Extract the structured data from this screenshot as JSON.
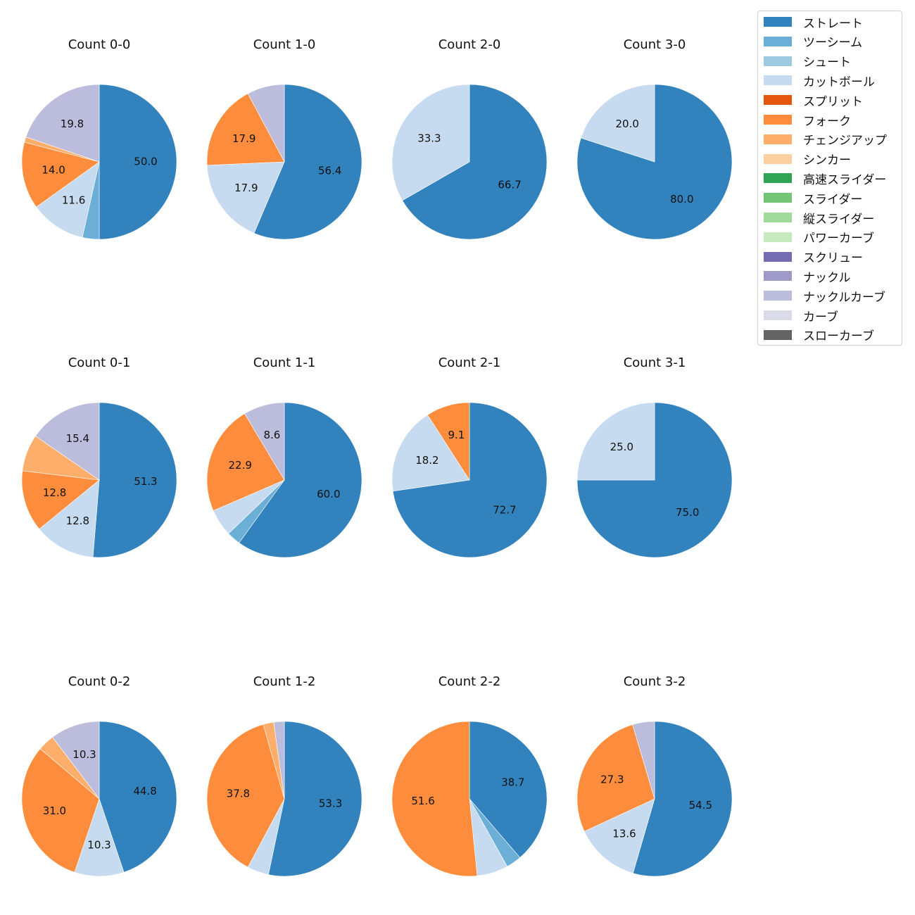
{
  "chart_data": {
    "type": "pie",
    "legend": {
      "placement": "top-right",
      "entries": [
        {
          "name": "ストレート",
          "color": "#3182bd"
        },
        {
          "name": "ツーシーム",
          "color": "#6baed6"
        },
        {
          "name": "シュート",
          "color": "#9ecae1"
        },
        {
          "name": "カットボール",
          "color": "#c6dbef"
        },
        {
          "name": "スプリット",
          "color": "#e6550d"
        },
        {
          "name": "フォーク",
          "color": "#fd8d3c"
        },
        {
          "name": "チェンジアップ",
          "color": "#fdae6b"
        },
        {
          "name": "シンカー",
          "color": "#fdd0a2"
        },
        {
          "name": "高速スライダー",
          "color": "#31a354"
        },
        {
          "name": "スライダー",
          "color": "#74c476"
        },
        {
          "name": "縦スライダー",
          "color": "#a1d99b"
        },
        {
          "name": "パワーカーブ",
          "color": "#c7e9c0"
        },
        {
          "name": "スクリュー",
          "color": "#756bb1"
        },
        {
          "name": "ナックル",
          "color": "#9e9ac8"
        },
        {
          "name": "ナックルカーブ",
          "color": "#bcbddc"
        },
        {
          "name": "カーブ",
          "color": "#dadaeb"
        },
        {
          "name": "スローカーブ",
          "color": "#636363"
        }
      ]
    },
    "charts": [
      {
        "title": "Count 0-0",
        "slices": [
          {
            "name": "ストレート",
            "value": 50.0,
            "label": "50.0"
          },
          {
            "name": "ツーシーム",
            "value": 3.5,
            "label": ""
          },
          {
            "name": "カットボール",
            "value": 11.6,
            "label": "11.6"
          },
          {
            "name": "フォーク",
            "value": 14.0,
            "label": "14.0"
          },
          {
            "name": "チェンジアップ",
            "value": 1.1,
            "label": ""
          },
          {
            "name": "ナックルカーブ",
            "value": 19.8,
            "label": "19.8"
          }
        ]
      },
      {
        "title": "Count 1-0",
        "slices": [
          {
            "name": "ストレート",
            "value": 56.4,
            "label": "56.4"
          },
          {
            "name": "カットボール",
            "value": 17.9,
            "label": "17.9"
          },
          {
            "name": "フォーク",
            "value": 17.9,
            "label": "17.9"
          },
          {
            "name": "ナックルカーブ",
            "value": 7.8,
            "label": ""
          }
        ]
      },
      {
        "title": "Count 2-0",
        "slices": [
          {
            "name": "ストレート",
            "value": 66.7,
            "label": "66.7"
          },
          {
            "name": "カットボール",
            "value": 33.3,
            "label": "33.3"
          }
        ]
      },
      {
        "title": "Count 3-0",
        "slices": [
          {
            "name": "ストレート",
            "value": 80.0,
            "label": "80.0"
          },
          {
            "name": "カットボール",
            "value": 20.0,
            "label": "20.0"
          }
        ]
      },
      {
        "title": "Count 0-1",
        "slices": [
          {
            "name": "ストレート",
            "value": 51.3,
            "label": "51.3"
          },
          {
            "name": "カットボール",
            "value": 12.8,
            "label": "12.8"
          },
          {
            "name": "フォーク",
            "value": 12.8,
            "label": "12.8"
          },
          {
            "name": "チェンジアップ",
            "value": 7.7,
            "label": ""
          },
          {
            "name": "ナックルカーブ",
            "value": 15.4,
            "label": "15.4"
          }
        ]
      },
      {
        "title": "Count 1-1",
        "slices": [
          {
            "name": "ストレート",
            "value": 60.0,
            "label": "60.0"
          },
          {
            "name": "ツーシーム",
            "value": 2.9,
            "label": ""
          },
          {
            "name": "カットボール",
            "value": 5.7,
            "label": ""
          },
          {
            "name": "フォーク",
            "value": 22.9,
            "label": "22.9"
          },
          {
            "name": "ナックルカーブ",
            "value": 8.6,
            "label": "8.6"
          }
        ]
      },
      {
        "title": "Count 2-1",
        "slices": [
          {
            "name": "ストレート",
            "value": 72.7,
            "label": "72.7"
          },
          {
            "name": "カットボール",
            "value": 18.2,
            "label": "18.2"
          },
          {
            "name": "フォーク",
            "value": 9.1,
            "label": "9.1"
          }
        ]
      },
      {
        "title": "Count 3-1",
        "slices": [
          {
            "name": "ストレート",
            "value": 75.0,
            "label": "75.0"
          },
          {
            "name": "カットボール",
            "value": 25.0,
            "label": "25.0"
          }
        ]
      },
      {
        "title": "Count 0-2",
        "slices": [
          {
            "name": "ストレート",
            "value": 44.8,
            "label": "44.8"
          },
          {
            "name": "カットボール",
            "value": 10.3,
            "label": "10.3"
          },
          {
            "name": "フォーク",
            "value": 31.0,
            "label": "31.0"
          },
          {
            "name": "チェンジアップ",
            "value": 3.5,
            "label": ""
          },
          {
            "name": "ナックルカーブ",
            "value": 10.3,
            "label": "10.3"
          }
        ]
      },
      {
        "title": "Count 1-2",
        "slices": [
          {
            "name": "ストレート",
            "value": 53.3,
            "label": "53.3"
          },
          {
            "name": "カットボール",
            "value": 4.5,
            "label": ""
          },
          {
            "name": "フォーク",
            "value": 37.8,
            "label": "37.8"
          },
          {
            "name": "チェンジアップ",
            "value": 2.2,
            "label": ""
          },
          {
            "name": "ナックルカーブ",
            "value": 2.2,
            "label": ""
          }
        ]
      },
      {
        "title": "Count 2-2",
        "slices": [
          {
            "name": "ストレート",
            "value": 38.7,
            "label": "38.7"
          },
          {
            "name": "ツーシーム",
            "value": 3.2,
            "label": ""
          },
          {
            "name": "カットボール",
            "value": 6.5,
            "label": ""
          },
          {
            "name": "フォーク",
            "value": 51.6,
            "label": "51.6"
          }
        ]
      },
      {
        "title": "Count 3-2",
        "slices": [
          {
            "name": "ストレート",
            "value": 54.5,
            "label": "54.5"
          },
          {
            "name": "カットボール",
            "value": 13.6,
            "label": "13.6"
          },
          {
            "name": "フォーク",
            "value": 27.3,
            "label": "27.3"
          },
          {
            "name": "ナックルカーブ",
            "value": 4.6,
            "label": ""
          }
        ]
      }
    ]
  }
}
